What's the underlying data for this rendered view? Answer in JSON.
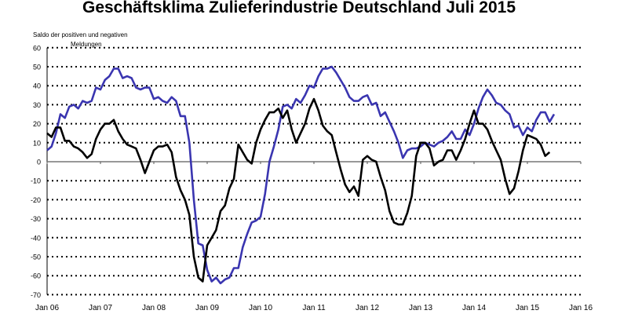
{
  "chart_data": {
    "type": "line",
    "title": "Geschäftsklima Zulieferindustrie Deutschland Juli 2015",
    "ylabel": [
      "Saldo der positiven und negativen",
      "Meldungen"
    ],
    "xlabel": "",
    "ylim": [
      -70,
      60
    ],
    "yticks": [
      "60",
      "50",
      "40",
      "30",
      "20",
      "10",
      "0",
      "-10",
      "-20",
      "-30",
      "-40",
      "-50",
      "-60",
      "-70"
    ],
    "xticks": [
      "Jan 06",
      "Jan 07",
      "Jan 08",
      "Jan 09",
      "Jan 10",
      "Jan 11",
      "Jan 12",
      "Jan 13",
      "Jan 14",
      "Jan 15",
      "Jan 16"
    ],
    "x_start": "Jan 06",
    "frequency": "monthly",
    "grid": "dotted horizontal",
    "series": [
      {
        "color": "#3a35b0",
        "values": [
          6,
          8,
          15,
          25,
          23,
          29,
          30,
          28,
          32,
          31,
          32,
          39,
          38,
          43,
          45,
          49,
          49,
          44,
          45,
          44,
          39,
          38,
          39,
          39,
          33,
          34,
          32,
          31,
          34,
          32,
          24,
          24,
          10,
          -20,
          -43,
          -44,
          -57,
          -63,
          -61,
          -64,
          -62,
          -61,
          -56,
          -56,
          -45,
          -38,
          -32,
          -31,
          -29,
          -17,
          0,
          8,
          17,
          29,
          30,
          28,
          33,
          31,
          35,
          40,
          39,
          45,
          49,
          49,
          50,
          47,
          43,
          39,
          34,
          32,
          32,
          34,
          35,
          30,
          31,
          24,
          26,
          21,
          16,
          10,
          2,
          6,
          7,
          7,
          8,
          10,
          9,
          8,
          10,
          11,
          13,
          16,
          12,
          12,
          17,
          14,
          20,
          28,
          34,
          38,
          35,
          31,
          30,
          27,
          25,
          18,
          19,
          14,
          18,
          16,
          22,
          26,
          26,
          21,
          25
        ]
      },
      {
        "color": "#000000",
        "values": [
          15,
          13,
          18,
          18,
          11,
          11,
          8,
          7,
          5,
          2,
          4,
          12,
          17,
          20,
          20,
          22,
          16,
          12,
          9,
          8,
          7,
          1,
          -6,
          0,
          6,
          8,
          8,
          9,
          5,
          -8,
          -15,
          -20,
          -28,
          -50,
          -61,
          -63,
          -44,
          -40,
          -36,
          -26,
          -23,
          -14,
          -9,
          9,
          5,
          1,
          -1,
          10,
          17,
          22,
          26,
          26,
          28,
          23,
          27,
          17,
          10,
          15,
          20,
          28,
          33,
          27,
          19,
          16,
          14,
          5,
          -4,
          -12,
          -16,
          -13,
          -18,
          1,
          3,
          1,
          0,
          -8,
          -15,
          -26,
          -32,
          -33,
          -33,
          -27,
          -18,
          3,
          10,
          10,
          7,
          -2,
          0,
          1,
          6,
          6,
          1,
          6,
          12,
          20,
          27,
          20,
          20,
          17,
          11,
          6,
          1,
          -9,
          -17,
          -14,
          -5,
          6,
          14,
          13,
          12,
          9,
          3,
          5
        ]
      }
    ]
  }
}
